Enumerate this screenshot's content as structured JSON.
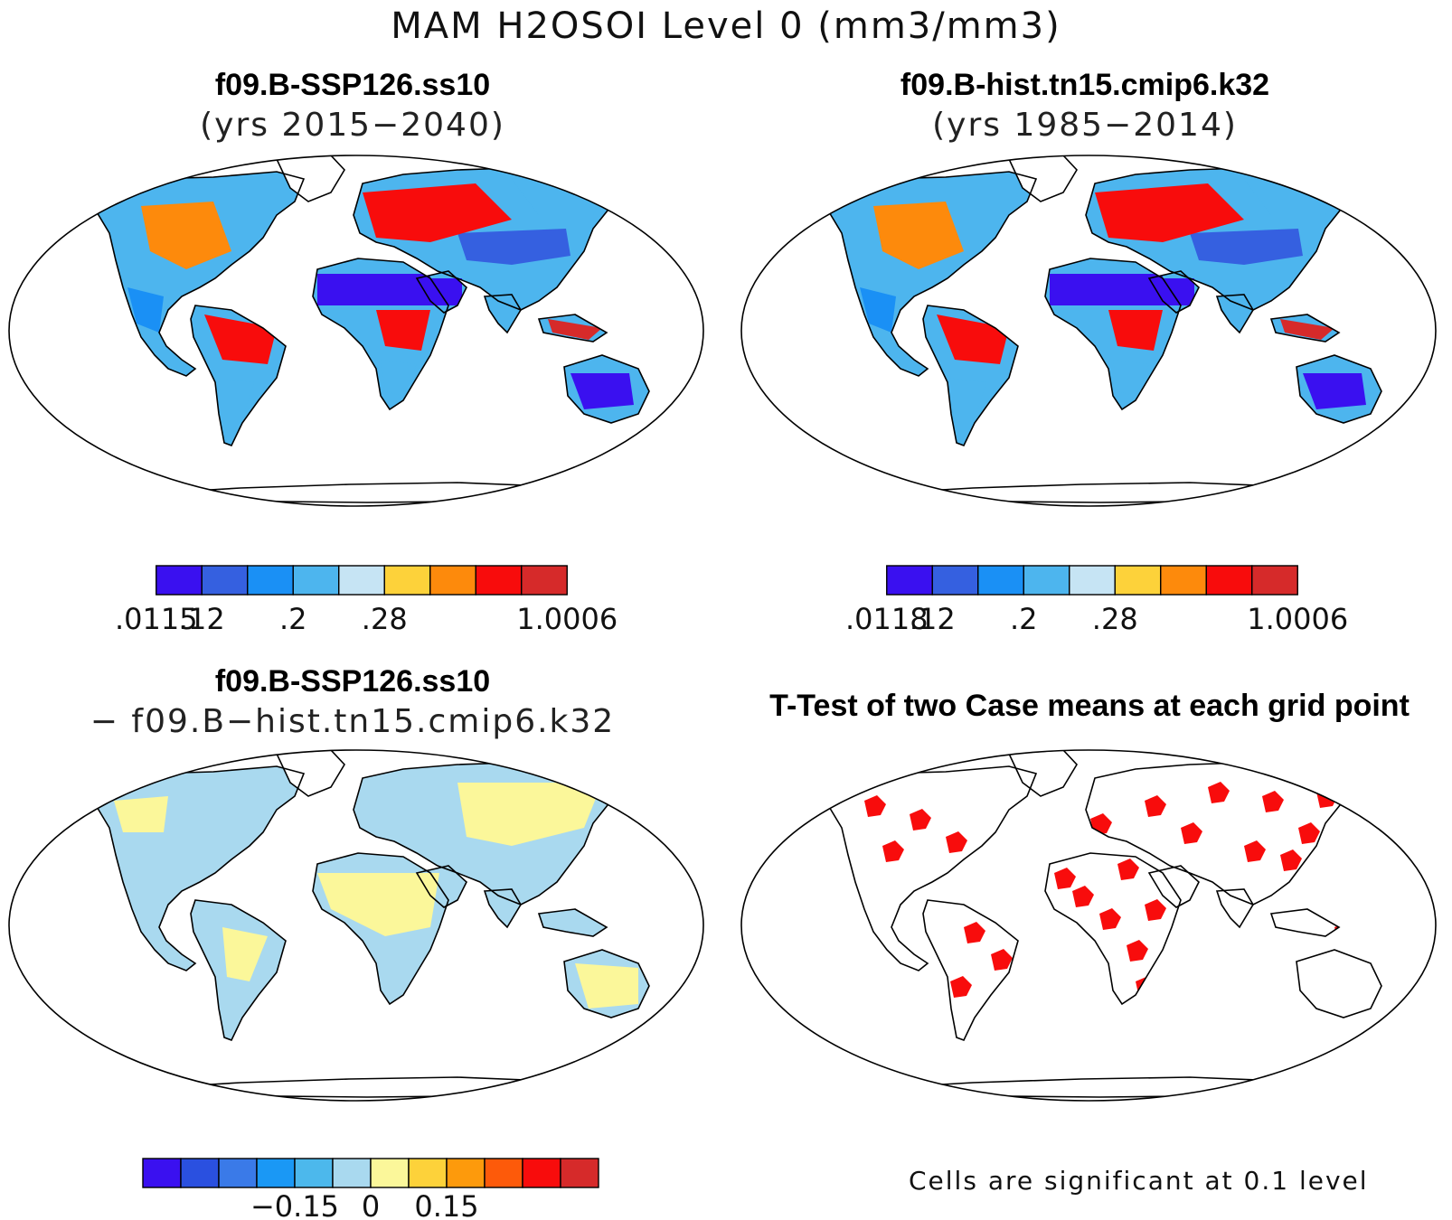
{
  "figure": {
    "main_title": "MAM H2OSOI Level 0 (mm3/mm3)",
    "footnote": "Cells are significant at 0.1 level"
  },
  "chart_data": [
    {
      "type": "heatmap",
      "panel": "top-left",
      "title": "f09.B-SSP126.ss10",
      "subtitle": "(yrs 2015−2040)",
      "colorbar": {
        "colors": [
          "#3a10f0",
          "#3560e0",
          "#1a90f5",
          "#4db5ee",
          "#c6e4f4",
          "#fdd23a",
          "#fd8a0c",
          "#f80c0c",
          "#d62a2a"
        ],
        "tick_labels": [
          ".0115",
          ".12",
          ".2",
          ".28",
          "1.0006"
        ],
        "tick_boundaries": [
          0,
          1,
          3,
          5,
          9
        ]
      }
    },
    {
      "type": "heatmap",
      "panel": "top-right",
      "title": "f09.B-hist.tn15.cmip6.k32",
      "subtitle": "(yrs 1985−2014)",
      "colorbar": {
        "colors": [
          "#3a10f0",
          "#3560e0",
          "#1a90f5",
          "#4db5ee",
          "#c6e4f4",
          "#fdd23a",
          "#fd8a0c",
          "#f80c0c",
          "#d62a2a"
        ],
        "tick_labels": [
          ".0118",
          ".12",
          ".2",
          ".28",
          "1.0006"
        ],
        "tick_boundaries": [
          0,
          1,
          3,
          5,
          9
        ]
      }
    },
    {
      "type": "heatmap",
      "panel": "bottom-left",
      "title": "f09.B-SSP126.ss10",
      "subtitle": "− f09.B−hist.tn15.cmip6.k32",
      "colorbar": {
        "colors": [
          "#3a10f0",
          "#2a50e0",
          "#3a7ae8",
          "#1a98f5",
          "#4cb8ec",
          "#a9d9ef",
          "#fbf79a",
          "#fdd23a",
          "#fd9a0c",
          "#fd5a0a",
          "#f80c0c",
          "#d62a2a"
        ],
        "tick_labels": [
          "−0.15",
          "0",
          "0.15"
        ],
        "tick_boundaries": [
          4,
          6,
          8
        ]
      }
    },
    {
      "type": "heatmap",
      "panel": "bottom-right",
      "title": "T-Test of two Case means at each grid point",
      "significance_color": "#f80c0c"
    }
  ]
}
